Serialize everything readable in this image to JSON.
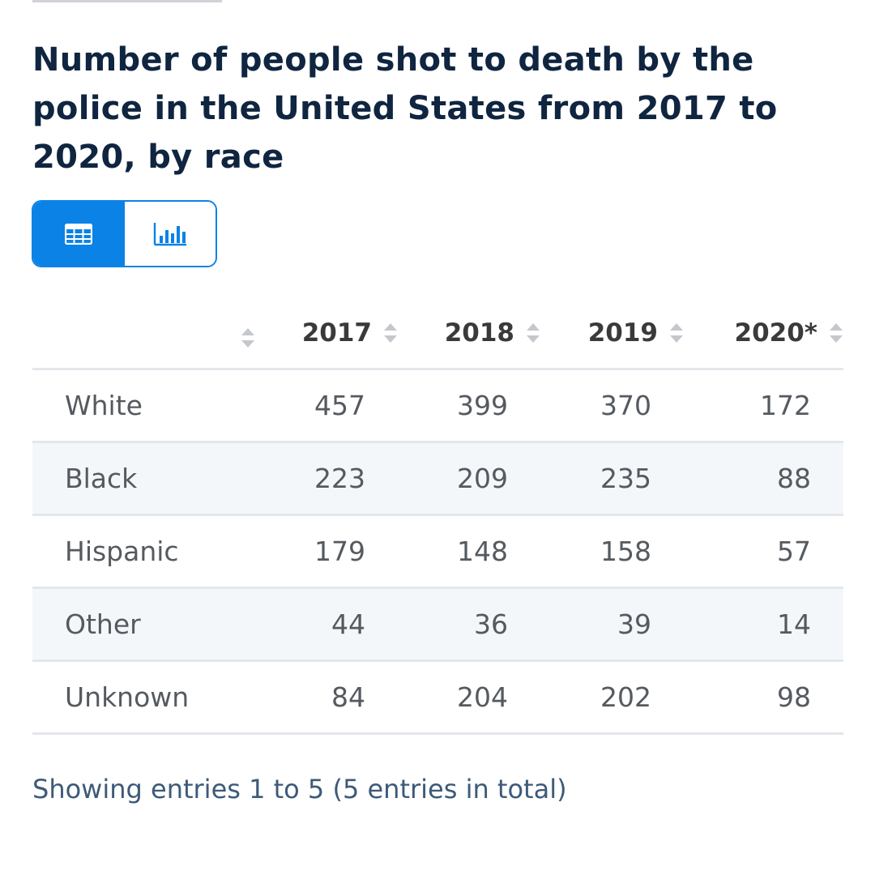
{
  "title": "Number of people shot to death by the police in the United States from 2017 to 2020, by race",
  "view_toggle": {
    "table_icon": "table-grid-icon",
    "chart_icon": "bar-chart-icon",
    "active": "table",
    "accent_color": "#0b82e6"
  },
  "table": {
    "columns": [
      "",
      "2017",
      "2018",
      "2019",
      "2020*"
    ],
    "rows": [
      {
        "label": "White",
        "values": [
          "457",
          "399",
          "370",
          "172"
        ]
      },
      {
        "label": "Black",
        "values": [
          "223",
          "209",
          "235",
          "88"
        ]
      },
      {
        "label": "Hispanic",
        "values": [
          "179",
          "148",
          "158",
          "57"
        ]
      },
      {
        "label": "Other",
        "values": [
          "44",
          "36",
          "39",
          "14"
        ]
      },
      {
        "label": "Unknown",
        "values": [
          "84",
          "204",
          "202",
          "98"
        ]
      }
    ]
  },
  "footer": {
    "entries_text": "Showing entries 1 to 5 (5 entries in total)"
  }
}
